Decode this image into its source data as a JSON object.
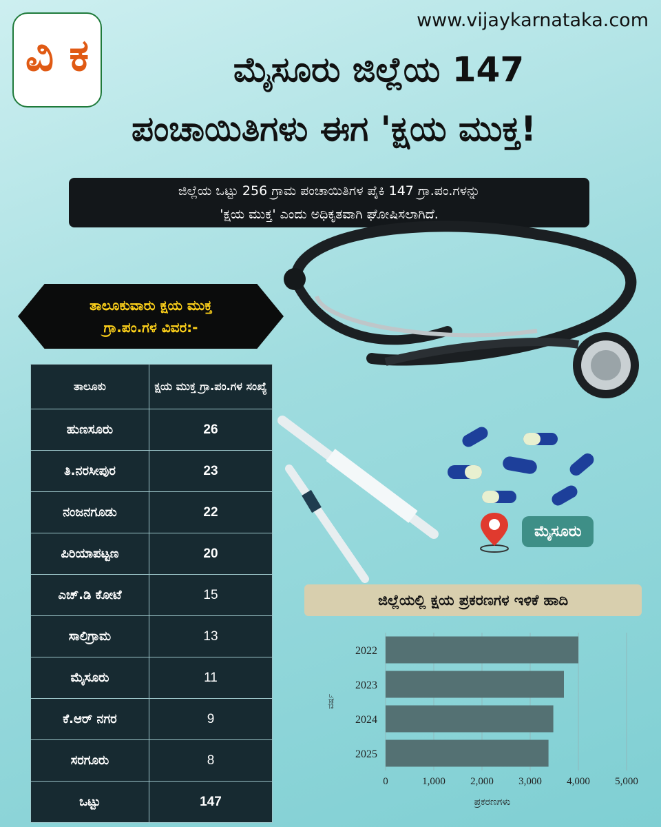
{
  "header": {
    "site_url": "www.vijaykarnataka.com",
    "logo_text": "ವಿ ಕ",
    "title_line1": "ಮೈಸೂರು ಜಿಲ್ಲೆಯ 147",
    "title_line2": "ಪಂಚಾಯಿತಿಗಳು ಈಗ 'ಕ್ಷಯ ಮುಕ್ತ!"
  },
  "subtitle": {
    "line1": "ಜಿಲ್ಲೆಯ ಒಟ್ಟು 256 ಗ್ರಾಮ ಪಂಚಾಯಿತಿಗಳ ಪೈಕಿ 147 ಗ್ರಾ.ಪಂ.ಗಳನ್ನು",
    "line2": "'ಕ್ಷಯ ಮುಕ್ತ' ಎಂದು ಅಧಿಕೃತವಾಗಿ ಘೋಷಿಸಲಾಗಿದೆ."
  },
  "taluk_section": {
    "heading_line1": "ತಾಲೂಕುವಾರು ಕ್ಷಯ ಮುಕ್ತ",
    "heading_line2": "ಗ್ರಾ.ಪಂ.ಗಳ ವಿವರ:-"
  },
  "location_label": "ಮೈಸೂರು",
  "chart_data": [
    {
      "type": "table",
      "columns": [
        "ತಾಲೂಕು",
        "ಕ್ಷಯ ಮುಕ್ತ ಗ್ರಾ.ಪಂ.ಗಳ ಸಂಖ್ಯೆ"
      ],
      "rows": [
        [
          "ಹುಣಸೂರು",
          "26"
        ],
        [
          "ತಿ.ನರಸೀಪುರ",
          "23"
        ],
        [
          "ನಂಜನಗೂಡು",
          "22"
        ],
        [
          "ಪಿರಿಯಾಪಟ್ಟಣ",
          "20"
        ],
        [
          "ಎಚ್.ಡಿ ಕೋಟೆ",
          "15"
        ],
        [
          "ಸಾಲಿಗ್ರಾಮ",
          "13"
        ],
        [
          "ಮೈಸೂರು",
          "11"
        ],
        [
          "ಕೆ.ಆರ್ ನಗರ",
          "9"
        ],
        [
          "ಸರಗೂರು",
          "8"
        ]
      ],
      "total_row": [
        "ಒಟ್ಟು",
        "147"
      ]
    },
    {
      "type": "bar",
      "orientation": "horizontal",
      "title": "ಜಿಲ್ಲೆಯಲ್ಲಿ ಕ್ಷಯ ಪ್ರಕರಣಗಳ ಇಳಿಕೆ ಹಾದಿ",
      "categories": [
        "2022",
        "2023",
        "2024",
        "2025"
      ],
      "values": [
        4000,
        3700,
        3480,
        3380
      ],
      "xlabel": "ಪ್ರಕರಣಗಳು",
      "ylabel": "ವರ್ಷ",
      "xlim": [
        0,
        5000
      ],
      "xticks": [
        "0",
        "1,000",
        "2,000",
        "3,000",
        "4,000",
        "5,000"
      ],
      "grid": true,
      "bar_color": "#547173"
    }
  ]
}
